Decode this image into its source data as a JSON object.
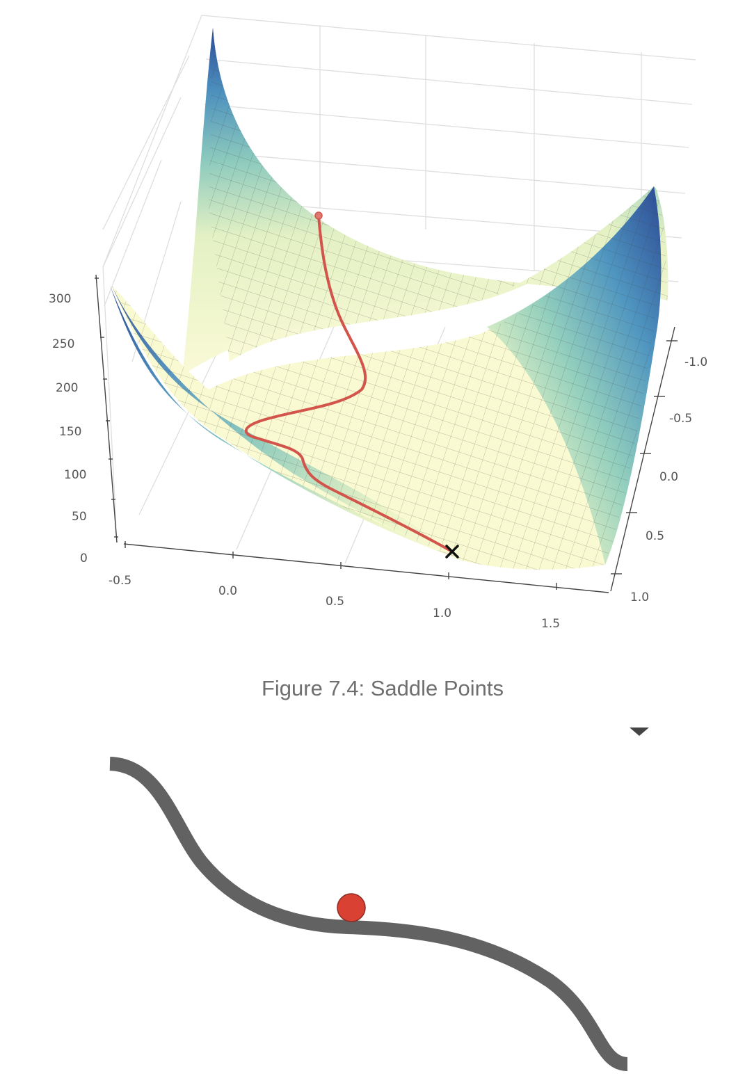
{
  "figure_caption": "Figure 7.4: Saddle Points",
  "colors": {
    "surface_low": "#f9f9d2",
    "surface_mid": "#8ccabd",
    "surface_high": "#2c4a94",
    "path": "#d2544a",
    "curve": "#626262",
    "ball": "#d94232",
    "caption": "#6f6f6f"
  },
  "chart_data": {
    "type": "surface",
    "title": "",
    "z_ticks": [
      "300",
      "250",
      "200",
      "150",
      "100",
      "50",
      "0"
    ],
    "x_ticks": [
      "-0.5",
      "0.0",
      "0.5",
      "1.0",
      "1.5"
    ],
    "y_ticks": [
      "-1.0",
      "-0.5",
      "0.0",
      "0.5",
      "1.0"
    ],
    "zlim": [
      0,
      300
    ],
    "xlim": [
      -0.5,
      1.5
    ],
    "ylim": [
      -1.0,
      1.0
    ],
    "grid": true,
    "colormap": "YlGnBu",
    "optimizer_path": {
      "start_marker": "circle",
      "end_marker": "x",
      "color": "#d2544a"
    }
  },
  "saddle_illustration": {
    "curve_color": "#626262",
    "ball_color": "#d94232"
  }
}
